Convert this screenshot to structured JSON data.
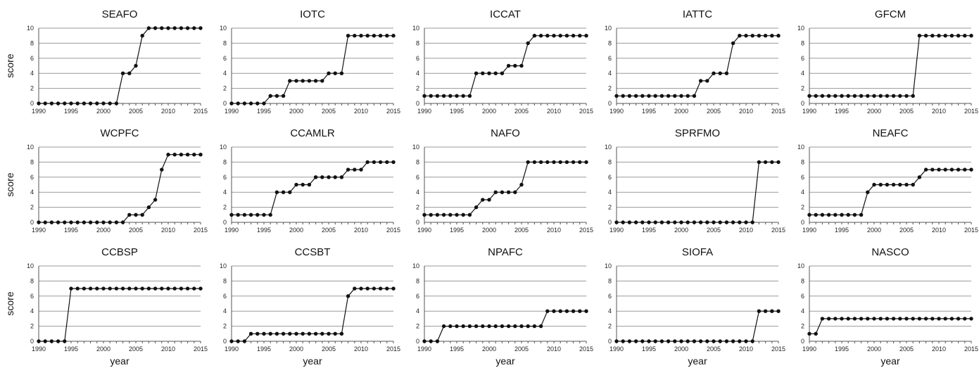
{
  "chart_data": [
    {
      "type": "line",
      "title": "SEAFO",
      "ylabel": "score",
      "xlabel": "",
      "ylim": [
        0,
        10
      ],
      "yticks": [
        0,
        2,
        4,
        6,
        8,
        10
      ],
      "xticks": [
        1990,
        1995,
        2000,
        2005,
        2010,
        2015
      ],
      "grid": true,
      "x": [
        1990,
        1991,
        1992,
        1993,
        1994,
        1995,
        1996,
        1997,
        1998,
        1999,
        2000,
        2001,
        2002,
        2003,
        2004,
        2005,
        2006,
        2007,
        2008,
        2009,
        2010,
        2011,
        2012,
        2013,
        2014,
        2015
      ],
      "values": [
        0,
        0,
        0,
        0,
        0,
        0,
        0,
        0,
        0,
        0,
        0,
        0,
        0,
        4,
        4,
        5,
        9,
        10,
        10,
        10,
        10,
        10,
        10,
        10,
        10,
        10
      ]
    },
    {
      "type": "line",
      "title": "IOTC",
      "ylabel": "",
      "xlabel": "",
      "ylim": [
        0,
        10
      ],
      "yticks": [
        0,
        2,
        4,
        6,
        8,
        10
      ],
      "xticks": [
        1990,
        1995,
        2000,
        2005,
        2010,
        2015
      ],
      "grid": true,
      "x": [
        1990,
        1991,
        1992,
        1993,
        1994,
        1995,
        1996,
        1997,
        1998,
        1999,
        2000,
        2001,
        2002,
        2003,
        2004,
        2005,
        2006,
        2007,
        2008,
        2009,
        2010,
        2011,
        2012,
        2013,
        2014,
        2015
      ],
      "values": [
        0,
        0,
        0,
        0,
        0,
        0,
        1,
        1,
        1,
        3,
        3,
        3,
        3,
        3,
        3,
        4,
        4,
        4,
        9,
        9,
        9,
        9,
        9,
        9,
        9,
        9
      ]
    },
    {
      "type": "line",
      "title": "ICCAT",
      "ylabel": "",
      "xlabel": "",
      "ylim": [
        0,
        10
      ],
      "yticks": [
        0,
        2,
        4,
        6,
        8,
        10
      ],
      "xticks": [
        1990,
        1995,
        2000,
        2005,
        2010,
        2015
      ],
      "grid": true,
      "x": [
        1990,
        1991,
        1992,
        1993,
        1994,
        1995,
        1996,
        1997,
        1998,
        1999,
        2000,
        2001,
        2002,
        2003,
        2004,
        2005,
        2006,
        2007,
        2008,
        2009,
        2010,
        2011,
        2012,
        2013,
        2014,
        2015
      ],
      "values": [
        1,
        1,
        1,
        1,
        1,
        1,
        1,
        1,
        4,
        4,
        4,
        4,
        4,
        5,
        5,
        5,
        8,
        9,
        9,
        9,
        9,
        9,
        9,
        9,
        9,
        9
      ]
    },
    {
      "type": "line",
      "title": "IATTC",
      "ylabel": "",
      "xlabel": "",
      "ylim": [
        0,
        10
      ],
      "yticks": [
        0,
        2,
        4,
        6,
        8,
        10
      ],
      "xticks": [
        1990,
        1995,
        2000,
        2005,
        2010,
        2015
      ],
      "grid": true,
      "x": [
        1990,
        1991,
        1992,
        1993,
        1994,
        1995,
        1996,
        1997,
        1998,
        1999,
        2000,
        2001,
        2002,
        2003,
        2004,
        2005,
        2006,
        2007,
        2008,
        2009,
        2010,
        2011,
        2012,
        2013,
        2014,
        2015
      ],
      "values": [
        1,
        1,
        1,
        1,
        1,
        1,
        1,
        1,
        1,
        1,
        1,
        1,
        1,
        3,
        3,
        4,
        4,
        4,
        8,
        9,
        9,
        9,
        9,
        9,
        9,
        9
      ]
    },
    {
      "type": "line",
      "title": "GFCM",
      "ylabel": "",
      "xlabel": "",
      "ylim": [
        0,
        10
      ],
      "yticks": [
        0,
        2,
        4,
        6,
        8,
        10
      ],
      "xticks": [
        1990,
        1995,
        2000,
        2005,
        2010,
        2015
      ],
      "grid": true,
      "x": [
        1990,
        1991,
        1992,
        1993,
        1994,
        1995,
        1996,
        1997,
        1998,
        1999,
        2000,
        2001,
        2002,
        2003,
        2004,
        2005,
        2006,
        2007,
        2008,
        2009,
        2010,
        2011,
        2012,
        2013,
        2014,
        2015
      ],
      "values": [
        1,
        1,
        1,
        1,
        1,
        1,
        1,
        1,
        1,
        1,
        1,
        1,
        1,
        1,
        1,
        1,
        1,
        9,
        9,
        9,
        9,
        9,
        9,
        9,
        9,
        9
      ]
    },
    {
      "type": "line",
      "title": "WCPFC",
      "ylabel": "score",
      "xlabel": "",
      "ylim": [
        0,
        10
      ],
      "yticks": [
        0,
        2,
        4,
        6,
        8,
        10
      ],
      "xticks": [
        1990,
        1995,
        2000,
        2005,
        2010,
        2015
      ],
      "grid": true,
      "x": [
        1990,
        1991,
        1992,
        1993,
        1994,
        1995,
        1996,
        1997,
        1998,
        1999,
        2000,
        2001,
        2002,
        2003,
        2004,
        2005,
        2006,
        2007,
        2008,
        2009,
        2010,
        2011,
        2012,
        2013,
        2014,
        2015
      ],
      "values": [
        0,
        0,
        0,
        0,
        0,
        0,
        0,
        0,
        0,
        0,
        0,
        0,
        0,
        0,
        1,
        1,
        1,
        2,
        3,
        7,
        9,
        9,
        9,
        9,
        9,
        9
      ]
    },
    {
      "type": "line",
      "title": "CCAMLR",
      "ylabel": "",
      "xlabel": "",
      "ylim": [
        0,
        10
      ],
      "yticks": [
        0,
        2,
        4,
        6,
        8,
        10
      ],
      "xticks": [
        1990,
        1995,
        2000,
        2005,
        2010,
        2015
      ],
      "grid": true,
      "x": [
        1990,
        1991,
        1992,
        1993,
        1994,
        1995,
        1996,
        1997,
        1998,
        1999,
        2000,
        2001,
        2002,
        2003,
        2004,
        2005,
        2006,
        2007,
        2008,
        2009,
        2010,
        2011,
        2012,
        2013,
        2014,
        2015
      ],
      "values": [
        1,
        1,
        1,
        1,
        1,
        1,
        1,
        4,
        4,
        4,
        5,
        5,
        5,
        6,
        6,
        6,
        6,
        6,
        7,
        7,
        7,
        8,
        8,
        8,
        8,
        8
      ]
    },
    {
      "type": "line",
      "title": "NAFO",
      "ylabel": "",
      "xlabel": "",
      "ylim": [
        0,
        10
      ],
      "yticks": [
        0,
        2,
        4,
        6,
        8,
        10
      ],
      "xticks": [
        1990,
        1995,
        2000,
        2005,
        2010,
        2015
      ],
      "grid": true,
      "x": [
        1990,
        1991,
        1992,
        1993,
        1994,
        1995,
        1996,
        1997,
        1998,
        1999,
        2000,
        2001,
        2002,
        2003,
        2004,
        2005,
        2006,
        2007,
        2008,
        2009,
        2010,
        2011,
        2012,
        2013,
        2014,
        2015
      ],
      "values": [
        1,
        1,
        1,
        1,
        1,
        1,
        1,
        1,
        2,
        3,
        3,
        4,
        4,
        4,
        4,
        5,
        8,
        8,
        8,
        8,
        8,
        8,
        8,
        8,
        8,
        8
      ]
    },
    {
      "type": "line",
      "title": "SPRFMO",
      "ylabel": "",
      "xlabel": "",
      "ylim": [
        0,
        10
      ],
      "yticks": [
        0,
        2,
        4,
        6,
        8,
        10
      ],
      "xticks": [
        1990,
        1995,
        2000,
        2005,
        2010,
        2015
      ],
      "grid": true,
      "x": [
        1990,
        1991,
        1992,
        1993,
        1994,
        1995,
        1996,
        1997,
        1998,
        1999,
        2000,
        2001,
        2002,
        2003,
        2004,
        2005,
        2006,
        2007,
        2008,
        2009,
        2010,
        2011,
        2012,
        2013,
        2014,
        2015
      ],
      "values": [
        0,
        0,
        0,
        0,
        0,
        0,
        0,
        0,
        0,
        0,
        0,
        0,
        0,
        0,
        0,
        0,
        0,
        0,
        0,
        0,
        0,
        0,
        8,
        8,
        8,
        8
      ]
    },
    {
      "type": "line",
      "title": "NEAFC",
      "ylabel": "",
      "xlabel": "",
      "ylim": [
        0,
        10
      ],
      "yticks": [
        0,
        2,
        4,
        6,
        8,
        10
      ],
      "xticks": [
        1990,
        1995,
        2000,
        2005,
        2010,
        2015
      ],
      "grid": true,
      "x": [
        1990,
        1991,
        1992,
        1993,
        1994,
        1995,
        1996,
        1997,
        1998,
        1999,
        2000,
        2001,
        2002,
        2003,
        2004,
        2005,
        2006,
        2007,
        2008,
        2009,
        2010,
        2011,
        2012,
        2013,
        2014,
        2015
      ],
      "values": [
        1,
        1,
        1,
        1,
        1,
        1,
        1,
        1,
        1,
        4,
        5,
        5,
        5,
        5,
        5,
        5,
        5,
        6,
        7,
        7,
        7,
        7,
        7,
        7,
        7,
        7
      ]
    },
    {
      "type": "line",
      "title": "CCBSP",
      "ylabel": "score",
      "xlabel": "year",
      "ylim": [
        0,
        10
      ],
      "yticks": [
        0,
        2,
        4,
        6,
        8,
        10
      ],
      "xticks": [
        1990,
        1995,
        2000,
        2005,
        2010,
        2015
      ],
      "grid": true,
      "x": [
        1990,
        1991,
        1992,
        1993,
        1994,
        1995,
        1996,
        1997,
        1998,
        1999,
        2000,
        2001,
        2002,
        2003,
        2004,
        2005,
        2006,
        2007,
        2008,
        2009,
        2010,
        2011,
        2012,
        2013,
        2014,
        2015
      ],
      "values": [
        0,
        0,
        0,
        0,
        0,
        7,
        7,
        7,
        7,
        7,
        7,
        7,
        7,
        7,
        7,
        7,
        7,
        7,
        7,
        7,
        7,
        7,
        7,
        7,
        7,
        7
      ]
    },
    {
      "type": "line",
      "title": "CCSBT",
      "ylabel": "",
      "xlabel": "year",
      "ylim": [
        0,
        10
      ],
      "yticks": [
        0,
        2,
        4,
        6,
        8,
        10
      ],
      "xticks": [
        1990,
        1995,
        2000,
        2005,
        2010,
        2015
      ],
      "grid": true,
      "x": [
        1990,
        1991,
        1992,
        1993,
        1994,
        1995,
        1996,
        1997,
        1998,
        1999,
        2000,
        2001,
        2002,
        2003,
        2004,
        2005,
        2006,
        2007,
        2008,
        2009,
        2010,
        2011,
        2012,
        2013,
        2014,
        2015
      ],
      "values": [
        0,
        0,
        0,
        1,
        1,
        1,
        1,
        1,
        1,
        1,
        1,
        1,
        1,
        1,
        1,
        1,
        1,
        1,
        6,
        7,
        7,
        7,
        7,
        7,
        7,
        7
      ]
    },
    {
      "type": "line",
      "title": "NPAFC",
      "ylabel": "",
      "xlabel": "year",
      "ylim": [
        0,
        10
      ],
      "yticks": [
        0,
        2,
        4,
        6,
        8,
        10
      ],
      "xticks": [
        1990,
        1995,
        2000,
        2005,
        2010,
        2015
      ],
      "grid": true,
      "x": [
        1990,
        1991,
        1992,
        1993,
        1994,
        1995,
        1996,
        1997,
        1998,
        1999,
        2000,
        2001,
        2002,
        2003,
        2004,
        2005,
        2006,
        2007,
        2008,
        2009,
        2010,
        2011,
        2012,
        2013,
        2014,
        2015
      ],
      "values": [
        0,
        0,
        0,
        2,
        2,
        2,
        2,
        2,
        2,
        2,
        2,
        2,
        2,
        2,
        2,
        2,
        2,
        2,
        2,
        4,
        4,
        4,
        4,
        4,
        4,
        4
      ]
    },
    {
      "type": "line",
      "title": "SIOFA",
      "ylabel": "",
      "xlabel": "year",
      "ylim": [
        0,
        10
      ],
      "yticks": [
        0,
        2,
        4,
        6,
        8,
        10
      ],
      "xticks": [
        1990,
        1995,
        2000,
        2005,
        2010,
        2015
      ],
      "grid": true,
      "x": [
        1990,
        1991,
        1992,
        1993,
        1994,
        1995,
        1996,
        1997,
        1998,
        1999,
        2000,
        2001,
        2002,
        2003,
        2004,
        2005,
        2006,
        2007,
        2008,
        2009,
        2010,
        2011,
        2012,
        2013,
        2014,
        2015
      ],
      "values": [
        0,
        0,
        0,
        0,
        0,
        0,
        0,
        0,
        0,
        0,
        0,
        0,
        0,
        0,
        0,
        0,
        0,
        0,
        0,
        0,
        0,
        0,
        4,
        4,
        4,
        4
      ]
    },
    {
      "type": "line",
      "title": "NASCO",
      "ylabel": "",
      "xlabel": "year",
      "ylim": [
        0,
        10
      ],
      "yticks": [
        0,
        2,
        4,
        6,
        8,
        10
      ],
      "xticks": [
        1990,
        1995,
        2000,
        2005,
        2010,
        2015
      ],
      "grid": true,
      "x": [
        1990,
        1991,
        1992,
        1993,
        1994,
        1995,
        1996,
        1997,
        1998,
        1999,
        2000,
        2001,
        2002,
        2003,
        2004,
        2005,
        2006,
        2007,
        2008,
        2009,
        2010,
        2011,
        2012,
        2013,
        2014,
        2015
      ],
      "values": [
        1,
        1,
        3,
        3,
        3,
        3,
        3,
        3,
        3,
        3,
        3,
        3,
        3,
        3,
        3,
        3,
        3,
        3,
        3,
        3,
        3,
        3,
        3,
        3,
        3,
        3
      ]
    }
  ]
}
